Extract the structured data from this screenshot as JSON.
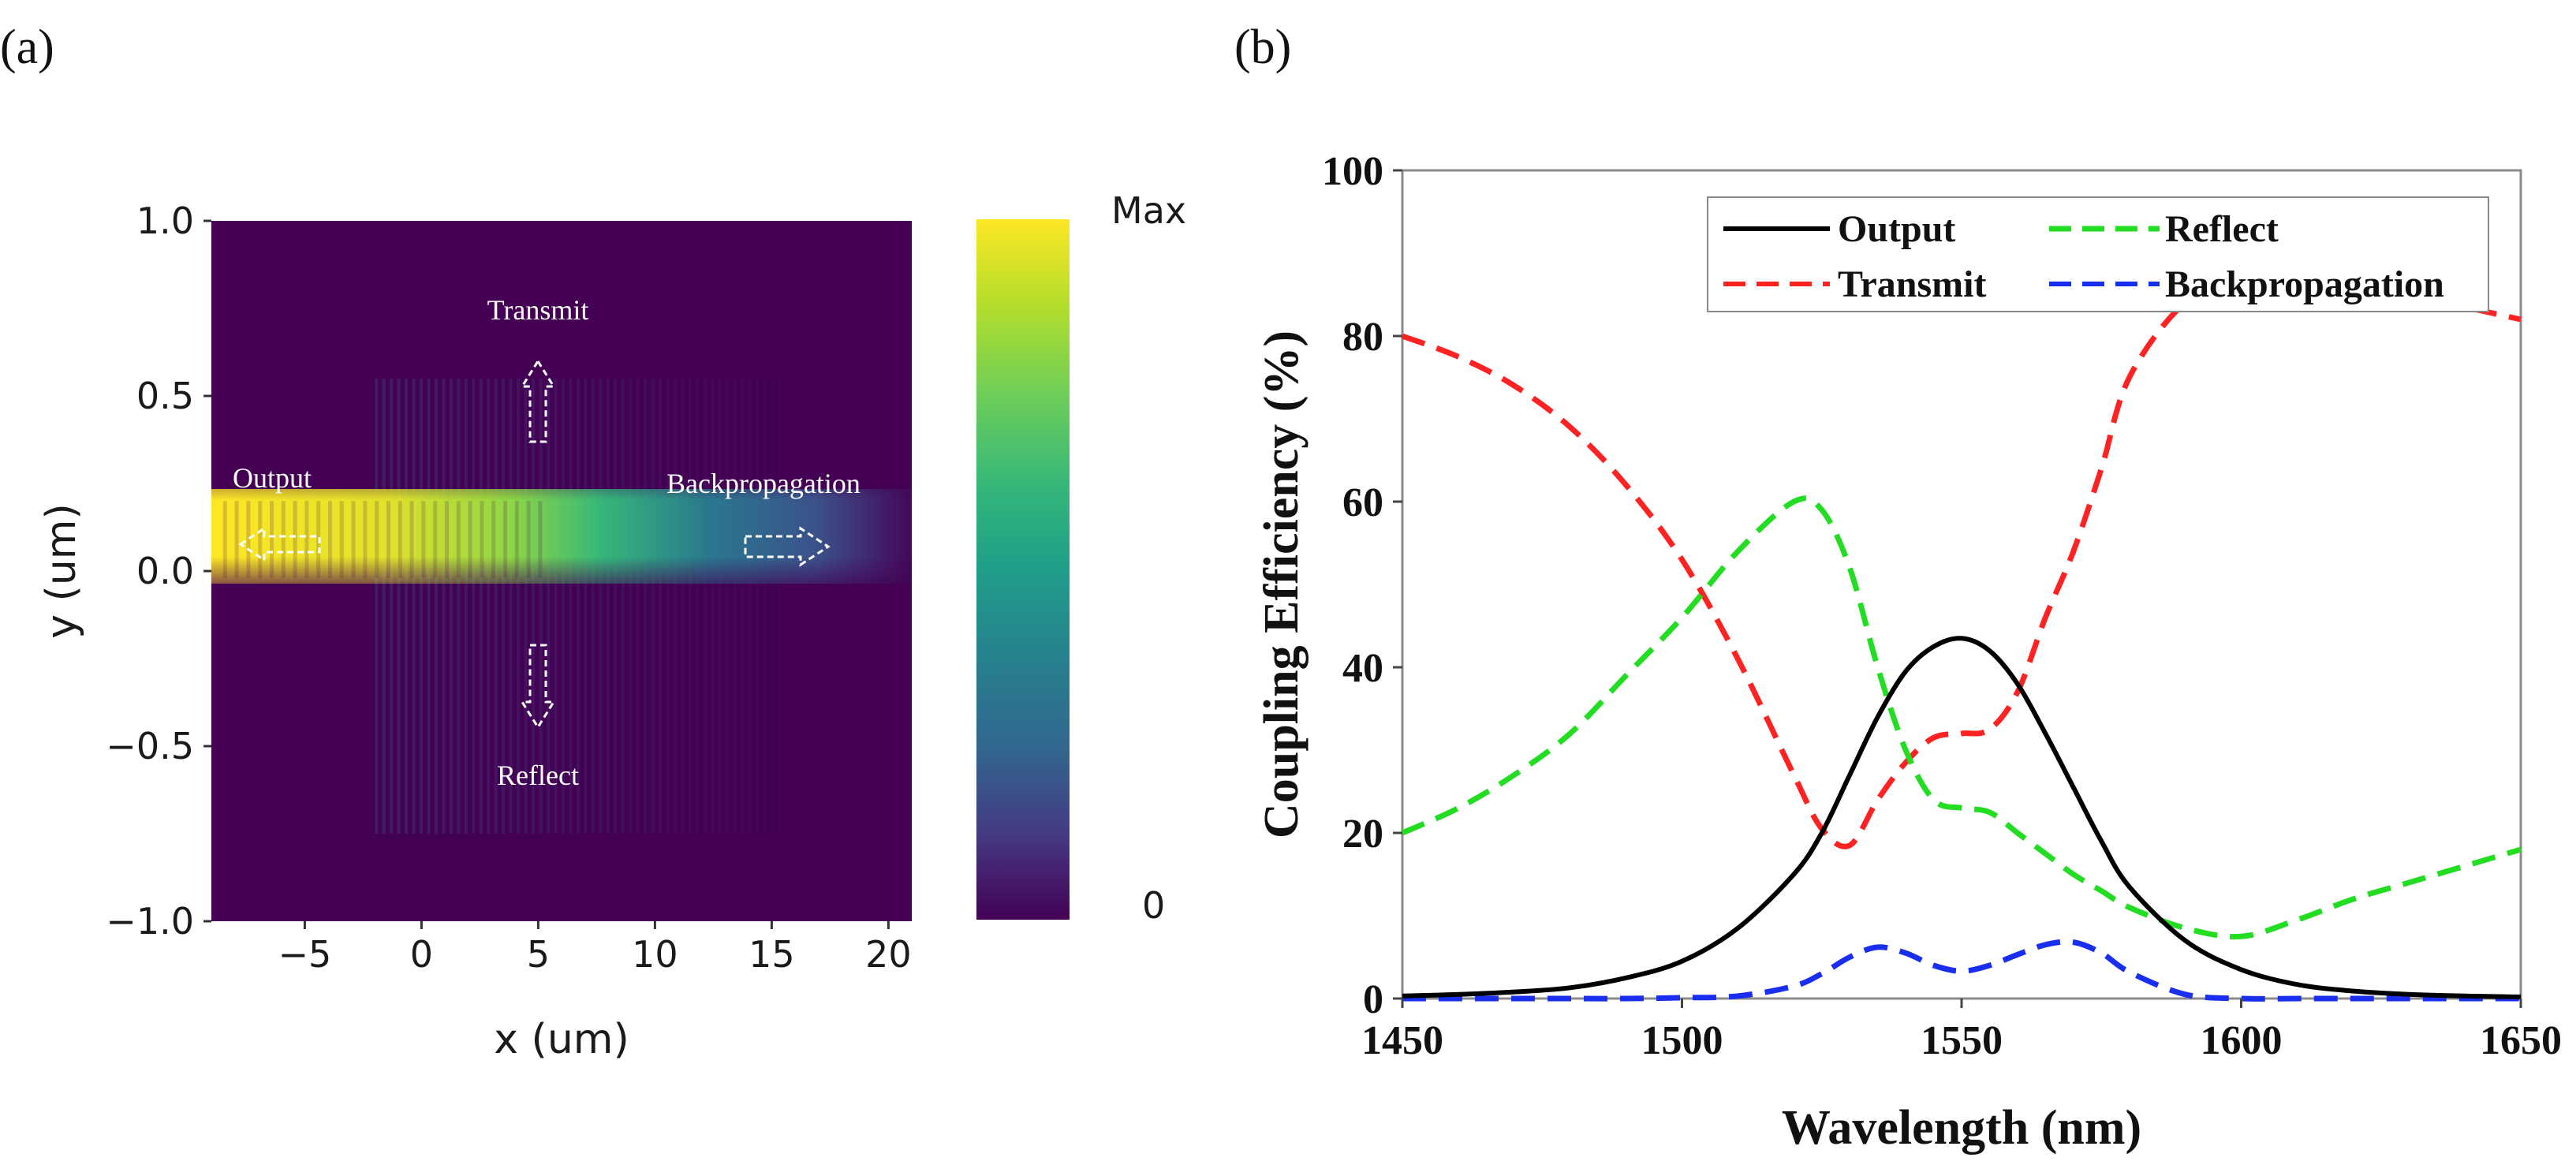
{
  "chart_data": [
    {
      "type": "heatmap",
      "panel_label": "(a)",
      "xlabel": "x (um)",
      "ylabel": "y (um)",
      "xlim": [
        -9,
        21
      ],
      "ylim": [
        -1.0,
        1.0
      ],
      "xticks": [
        "−5",
        "0",
        "5",
        "10",
        "15",
        "20"
      ],
      "xtick_values": [
        -5,
        0,
        5,
        10,
        15,
        20
      ],
      "yticks": [
        "1.0",
        "0.5",
        "0.0",
        "−0.5",
        "−1.0"
      ],
      "ytick_values": [
        1.0,
        0.5,
        0.0,
        -0.5,
        -1.0
      ],
      "colorbar": {
        "max_label": "Max",
        "min_label": "0"
      },
      "annotations": [
        {
          "text": "Transmit",
          "arrow": "up"
        },
        {
          "text": "Output",
          "arrow": "left"
        },
        {
          "text": "Backpropagation",
          "arrow": "right"
        },
        {
          "text": "Reflect",
          "arrow": "down"
        }
      ],
      "colors": {
        "background": "#440154",
        "mid": "#21918c",
        "high": "#fde725"
      }
    },
    {
      "type": "line",
      "panel_label": "(b)",
      "xlabel": "Wavelength (nm)",
      "ylabel": "Coupling Efficiency (%)",
      "xlim": [
        1450,
        1650
      ],
      "ylim": [
        0,
        100
      ],
      "xticks": [
        "1450",
        "1500",
        "1550",
        "1600",
        "1650"
      ],
      "xtick_values": [
        1450,
        1500,
        1550,
        1600,
        1650
      ],
      "yticks": [
        "0",
        "20",
        "40",
        "60",
        "80",
        "100"
      ],
      "ytick_values": [
        0,
        20,
        40,
        60,
        80,
        100
      ],
      "legend_position": "top-right",
      "x": [
        1450,
        1460,
        1470,
        1480,
        1490,
        1500,
        1510,
        1520,
        1525,
        1530,
        1535,
        1540,
        1545,
        1550,
        1555,
        1560,
        1565,
        1570,
        1575,
        1580,
        1590,
        1600,
        1610,
        1620,
        1630,
        1640,
        1650
      ],
      "series": [
        {
          "name": "Output",
          "color": "#000000",
          "dash": "solid",
          "values": [
            0.3,
            0.5,
            0.8,
            1.3,
            2.5,
            4.5,
            8.5,
            15,
            20,
            27,
            34,
            39.5,
            42.5,
            43.5,
            42,
            38,
            32,
            25.5,
            19,
            13.5,
            7,
            3.5,
            1.7,
            0.9,
            0.5,
            0.3,
            0.2
          ]
        },
        {
          "name": "Reflect",
          "color": "#22dd22",
          "dash": "dashed",
          "values": [
            20,
            23,
            27,
            32,
            39,
            46,
            54,
            60,
            59,
            52,
            40,
            30,
            24,
            23,
            22.5,
            20,
            17.5,
            15,
            13,
            11,
            8.5,
            7.5,
            9.5,
            12,
            14,
            16,
            18
          ]
        },
        {
          "name": "Transmit",
          "color": "#ff2222",
          "dash": "dashed",
          "values": [
            80,
            77.5,
            74,
            69,
            62,
            53,
            41,
            27,
            20.5,
            18.5,
            24,
            28.5,
            31.5,
            32,
            32.5,
            37,
            46,
            54,
            64,
            75,
            84,
            86,
            86,
            85.5,
            85,
            83.5,
            82
          ]
        },
        {
          "name": "Backpropagation",
          "color": "#1a2ef0",
          "dash": "dashed",
          "values": [
            0,
            0,
            0,
            0,
            0,
            0.1,
            0.3,
            1.5,
            3,
            5,
            6.2,
            5.5,
            4,
            3.3,
            4,
            5.3,
            6.5,
            6.8,
            5.5,
            3.2,
            0.5,
            0,
            0,
            0,
            0,
            0,
            0
          ]
        }
      ]
    }
  ]
}
